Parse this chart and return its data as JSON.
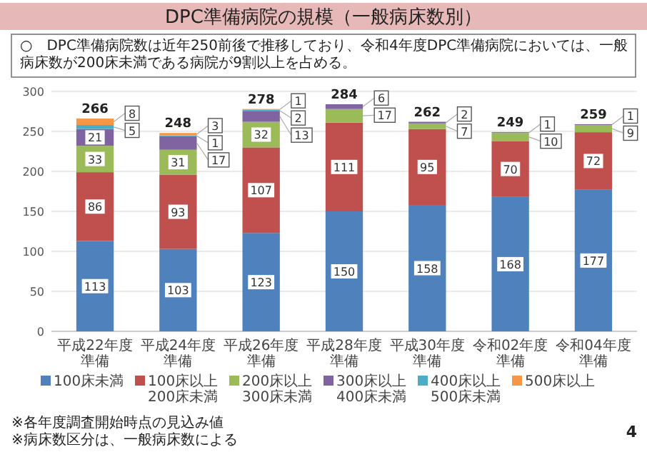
{
  "chart_data": {
    "type": "bar",
    "title": "DPC準備病院の規模（一般病床数別）",
    "subtitle": "○　DPC準備病院数は近年250前後で推移しており、令和4年度DPC準備病院においては、一般病床数が200床未満である病院が9割以上を占める。",
    "categories": [
      "平成22年度準備",
      "平成24年度準備",
      "平成26年度準備",
      "平成28年度準備",
      "平成30年度準備",
      "令和02年度準備",
      "令和04年度準備"
    ],
    "stacked": true,
    "series": [
      {
        "name": "100床未満",
        "color": "#4f81bd",
        "values": [
          113,
          103,
          123,
          150,
          158,
          168,
          177
        ]
      },
      {
        "name": "100床以上 200床未満",
        "color": "#c0504d",
        "values": [
          86,
          93,
          107,
          111,
          95,
          70,
          72
        ]
      },
      {
        "name": "200床以上 300床未満",
        "color": "#9bbb59",
        "values": [
          33,
          31,
          32,
          17,
          7,
          10,
          9
        ]
      },
      {
        "name": "300床以上 400床未満",
        "color": "#8064a2",
        "values": [
          21,
          17,
          13,
          6,
          2,
          1,
          1
        ]
      },
      {
        "name": "400床以上 500床未満",
        "color": "#4bacc6",
        "values": [
          5,
          1,
          2,
          null,
          null,
          null,
          null
        ]
      },
      {
        "name": "500床以上",
        "color": "#f79646",
        "values": [
          8,
          3,
          1,
          null,
          null,
          null,
          null
        ]
      }
    ],
    "totals": [
      "266",
      "248",
      "278",
      "284",
      "262",
      "249",
      "259"
    ],
    "data_labels": true,
    "ylim": [
      0,
      300
    ],
    "yticks": [
      0,
      50,
      100,
      150,
      200,
      250,
      300
    ],
    "grid": "y",
    "legend": "bottom",
    "annotations": [
      "※各年度調査開始時点の見込み値",
      "※病床数区分は、一般病床数による",
      "4"
    ]
  }
}
